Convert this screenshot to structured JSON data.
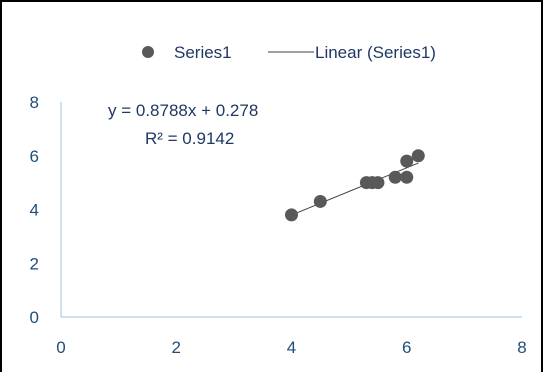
{
  "chart_data": {
    "type": "scatter",
    "legend": {
      "position": "top",
      "items": [
        {
          "label": "Series1",
          "marker": "circle"
        },
        {
          "label": "Linear (Series1)",
          "marker": "line"
        }
      ]
    },
    "series": [
      {
        "name": "Series1",
        "points": [
          {
            "x": 4.0,
            "y": 3.8
          },
          {
            "x": 4.5,
            "y": 4.3
          },
          {
            "x": 5.3,
            "y": 5.0
          },
          {
            "x": 5.4,
            "y": 5.0
          },
          {
            "x": 5.5,
            "y": 5.0
          },
          {
            "x": 5.8,
            "y": 5.2
          },
          {
            "x": 6.0,
            "y": 5.2
          },
          {
            "x": 6.0,
            "y": 5.8
          },
          {
            "x": 6.2,
            "y": 6.0
          }
        ]
      }
    ],
    "trendline": {
      "name": "Linear (Series1)",
      "slope": 0.8788,
      "intercept": 0.278,
      "x_range": [
        4.0,
        6.2
      ],
      "equation": "y = 0.8788x + 0.278",
      "r_squared": "R² = 0.9142"
    },
    "xlim": [
      0,
      8
    ],
    "ylim": [
      0,
      8
    ],
    "xticks": [
      "0",
      "2",
      "4",
      "6",
      "8"
    ],
    "yticks": [
      "0",
      "2",
      "4",
      "6",
      "8"
    ],
    "grid": false,
    "colors": {
      "marker": "#595959",
      "trendline": "#404040",
      "axis": "#9dc3e6",
      "tick_label": "#1f4e79",
      "equation_text": "#1f3864",
      "legend_text": "#1f3864",
      "frame_border": "#000000"
    }
  }
}
